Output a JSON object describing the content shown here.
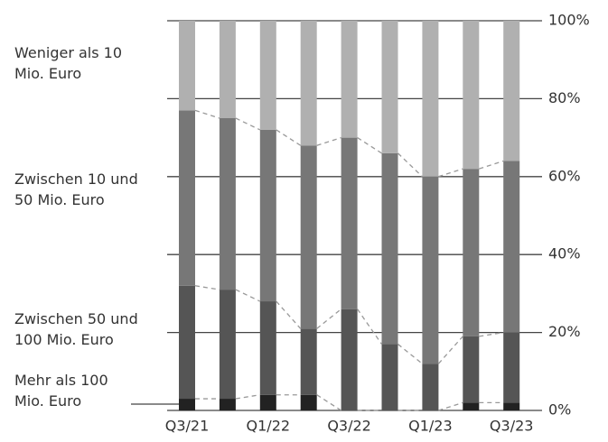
{
  "chart_data": {
    "type": "stacked_bar",
    "categories": [
      "Q3/21",
      null,
      "Q1/22",
      null,
      "Q3/22",
      null,
      "Q1/23",
      null,
      "Q3/23"
    ],
    "series": [
      {
        "name": "Mehr als 100 Mio. Euro",
        "color": "#222222",
        "values": [
          3,
          3,
          4,
          4,
          0,
          0,
          0,
          2,
          2
        ]
      },
      {
        "name": "Zwischen 50 und 100 Mio. Euro",
        "color": "#555555",
        "values": [
          29,
          28,
          24,
          17,
          26,
          17,
          12,
          17,
          18
        ]
      },
      {
        "name": "Zwischen 10 und 50 Mio. Euro",
        "color": "#777777",
        "values": [
          45,
          44,
          44,
          47,
          44,
          49,
          48,
          43,
          44
        ]
      },
      {
        "name": "Weniger als 10 Mio. Euro",
        "color": "#b0b0b0",
        "values": [
          23,
          25,
          28,
          32,
          30,
          34,
          40,
          38,
          36
        ]
      }
    ],
    "ylim": [
      0,
      100
    ],
    "yticks": [
      {
        "value": 0,
        "label": "0%"
      },
      {
        "value": 20,
        "label": "20%"
      },
      {
        "value": 40,
        "label": "40%"
      },
      {
        "value": 60,
        "label": "60%"
      },
      {
        "value": 80,
        "label": "80%"
      },
      {
        "value": 100,
        "label": "100%"
      }
    ],
    "grid": true
  }
}
